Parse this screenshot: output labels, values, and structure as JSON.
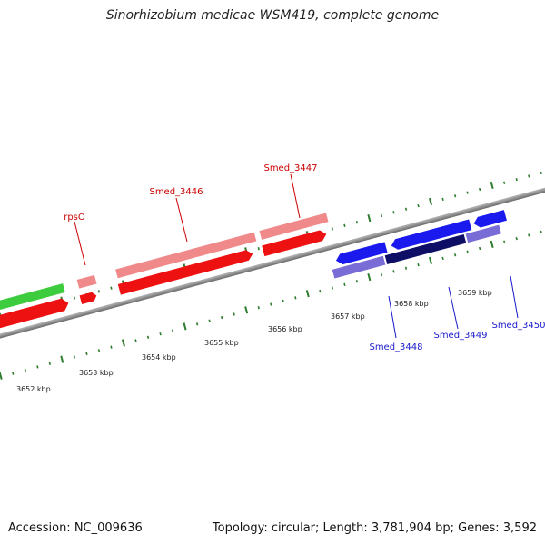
{
  "title": "Sinorhizobium medicae WSM419, complete genome",
  "accession": "Accession: NC_009636",
  "summary": "Topology: circular; Length: 3,781,904 bp; Genes: 3,592",
  "colors": {
    "axis": "#8c8c8c",
    "tick": "#2e7d2e",
    "forward_label": "#cc0000",
    "reverse_label": "#1a1acc"
  },
  "ticks": [
    {
      "label": "3652 kbp"
    },
    {
      "label": "3653 kbp"
    },
    {
      "label": "3654 kbp"
    },
    {
      "label": "3655 kbp"
    },
    {
      "label": "3656 kbp"
    },
    {
      "label": "3657 kbp"
    },
    {
      "label": "3658 kbp"
    },
    {
      "label": "3659 kbp"
    }
  ],
  "gene_labels": [
    {
      "name": "rpsO",
      "strand": "forward"
    },
    {
      "name": "Smed_3446",
      "strand": "forward"
    },
    {
      "name": "Smed_3447",
      "strand": "forward"
    },
    {
      "name": "Smed_3448",
      "strand": "reverse"
    },
    {
      "name": "Smed_3449",
      "strand": "reverse"
    },
    {
      "name": "Smed_3450",
      "strand": "reverse"
    }
  ]
}
